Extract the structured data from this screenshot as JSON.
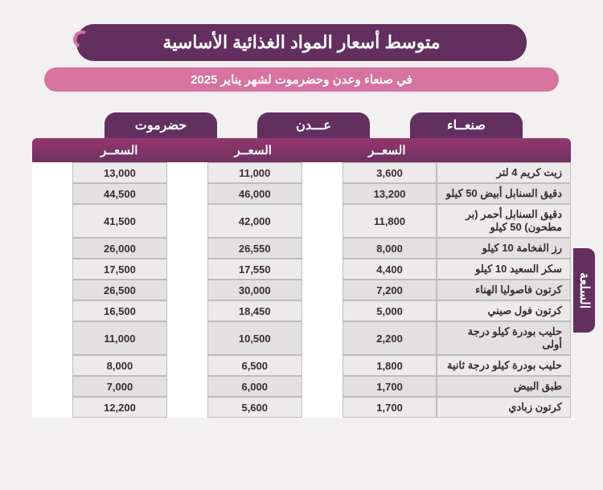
{
  "title": "متوسط أسعار المواد الغذائية الأساسية",
  "subtitle": "في صنعاء وعدن وحضرموت لشهر يناير 2025",
  "side_label": "السلعة",
  "price_label": "السعــر",
  "cities": [
    "صنعــاء",
    "عـــدن",
    "حضرموت"
  ],
  "rows": [
    {
      "item": "زيت كريم 4 لتر",
      "prices": [
        "3,600",
        "11,000",
        "13,000"
      ]
    },
    {
      "item": "دقيق السنابل أبيض 50 كيلو",
      "prices": [
        "13,200",
        "46,000",
        "44,500"
      ]
    },
    {
      "item": "دقيق السنابل أحمر (بر مطحون) 50 كيلو",
      "prices": [
        "11,800",
        "42,000",
        "41,500"
      ]
    },
    {
      "item": "رز الفخامة 10 كيلو",
      "prices": [
        "8,000",
        "26,550",
        "26,000"
      ]
    },
    {
      "item": "سكر السعيد 10 كيلو",
      "prices": [
        "4,400",
        "17,550",
        "17,500"
      ]
    },
    {
      "item": "كرتون فاصوليا الهناء",
      "prices": [
        "7,200",
        "30,000",
        "26,500"
      ]
    },
    {
      "item": "كرتون فول صيني",
      "prices": [
        "5,000",
        "18,450",
        "16,500"
      ]
    },
    {
      "item": "حليب بودرة كيلو درجة أولى",
      "prices": [
        "2,200",
        "10,500",
        "11,000"
      ]
    },
    {
      "item": "حليب بودرة كيلو درجة ثانية",
      "prices": [
        "1,800",
        "6,500",
        "8,000"
      ]
    },
    {
      "item": "طبق البيض",
      "prices": [
        "1,700",
        "6,000",
        "7,000"
      ]
    },
    {
      "item": "كرتون زبادي",
      "prices": [
        "1,700",
        "5,600",
        "12,200"
      ]
    }
  ],
  "colors": {
    "primary": "#622f5f",
    "accent": "#d8729e",
    "header_grad_top": "#96366d",
    "header_grad_bottom": "#6e3261",
    "bg": "#f2f0f1",
    "row_odd": "#eceaeb",
    "row_even": "#e2e0e1",
    "border": "#c0bcbe"
  }
}
